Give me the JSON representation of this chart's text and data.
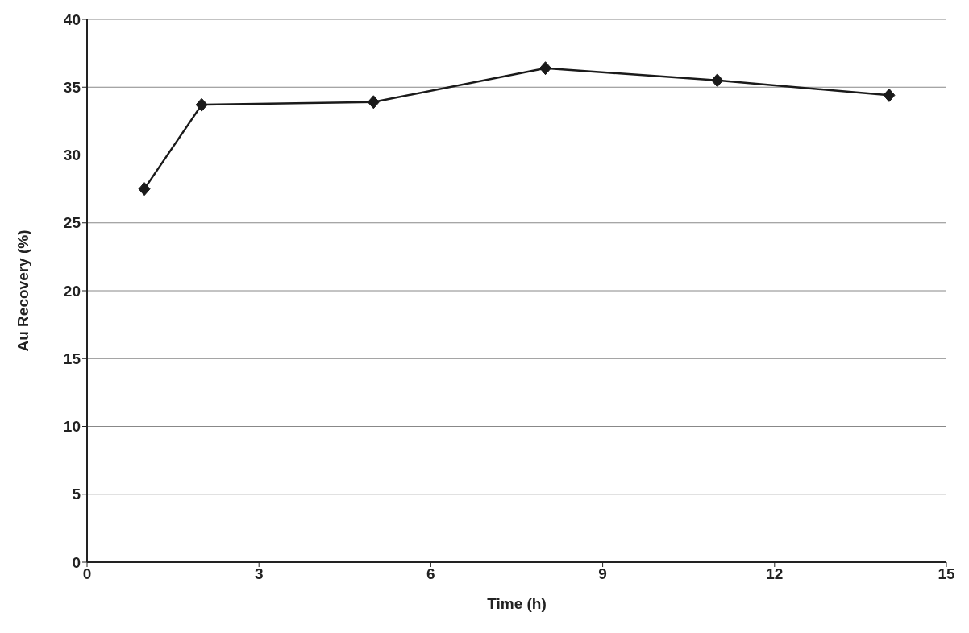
{
  "chart_data": {
    "type": "line",
    "xlabel": "Time (h)",
    "ylabel": "Au Recovery (%)",
    "x": [
      1,
      2,
      5,
      8,
      11,
      14
    ],
    "series": [
      {
        "color": "#1a1a1a",
        "values": [
          27.5,
          33.7,
          33.9,
          36.4,
          35.5,
          34.4
        ]
      }
    ],
    "xlim": [
      0,
      15
    ],
    "xticks": [
      0,
      3,
      6,
      9,
      12,
      15
    ],
    "ylim": [
      0,
      40
    ],
    "yticks": [
      0,
      5,
      10,
      15,
      20,
      25,
      30,
      35,
      40
    ],
    "grid": "y",
    "marker": "diamond",
    "line_style": "solid"
  }
}
